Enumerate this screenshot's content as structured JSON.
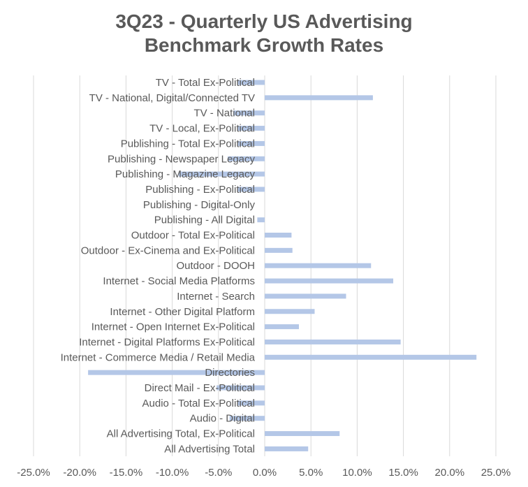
{
  "chart_data": {
    "type": "bar",
    "orientation": "horizontal",
    "title_lines": [
      "3Q23 - Quarterly US Advertising",
      "Benchmark Growth Rates"
    ],
    "categories": [
      "TV - Total Ex-Political",
      "TV - National, Digital/Connected TV",
      "TV - National",
      "TV - Local, Ex-Political",
      "Publishing - Total Ex-Political",
      "Publishing - Newspaper Legacy",
      "Publishing - Magazine Legacy",
      "Publishing - Ex-Political",
      "Publishing - Digital-Only",
      "Publishing - All Digital",
      "Outdoor - Total Ex-Political",
      "Outdoor - Ex-Cinema and Ex-Political",
      "Outdoor - DOOH",
      "Internet - Social Media Platforms",
      "Internet - Search",
      "Internet - Other Digital Platform",
      "Internet - Open Internet Ex-Political",
      "Internet - Digital Platforms Ex-Political",
      "Internet - Commerce Media / Retail Media",
      "Directories",
      "Direct Mail - Ex-Political",
      "Audio - Total Ex-Political",
      "Audio - Digital",
      "All Advertising Total, Ex-Political",
      "All Advertising Total"
    ],
    "values": [
      -2.9,
      11.7,
      -3.4,
      -2.9,
      -2.9,
      -4.0,
      -9.3,
      -2.9,
      0.0,
      -0.8,
      2.9,
      3.0,
      11.5,
      13.9,
      8.8,
      5.4,
      3.7,
      14.7,
      22.9,
      -19.1,
      -5.2,
      -2.9,
      -3.8,
      8.1,
      4.7
    ],
    "xlim": [
      -25,
      25
    ],
    "x_ticks": [
      -25,
      -20,
      -15,
      -10,
      -5,
      0,
      5,
      10,
      15,
      20,
      25
    ],
    "x_tick_labels": [
      "-25.0%",
      "-20.0%",
      "-15.0%",
      "-10.0%",
      "-5.0%",
      "0.0%",
      "5.0%",
      "10.0%",
      "15.0%",
      "20.0%",
      "25.0%"
    ],
    "grid": "vertical",
    "legend": "none",
    "bar_color": "#B4C7E7",
    "grid_color": "#D9D9D9",
    "text_color": "#595959"
  }
}
